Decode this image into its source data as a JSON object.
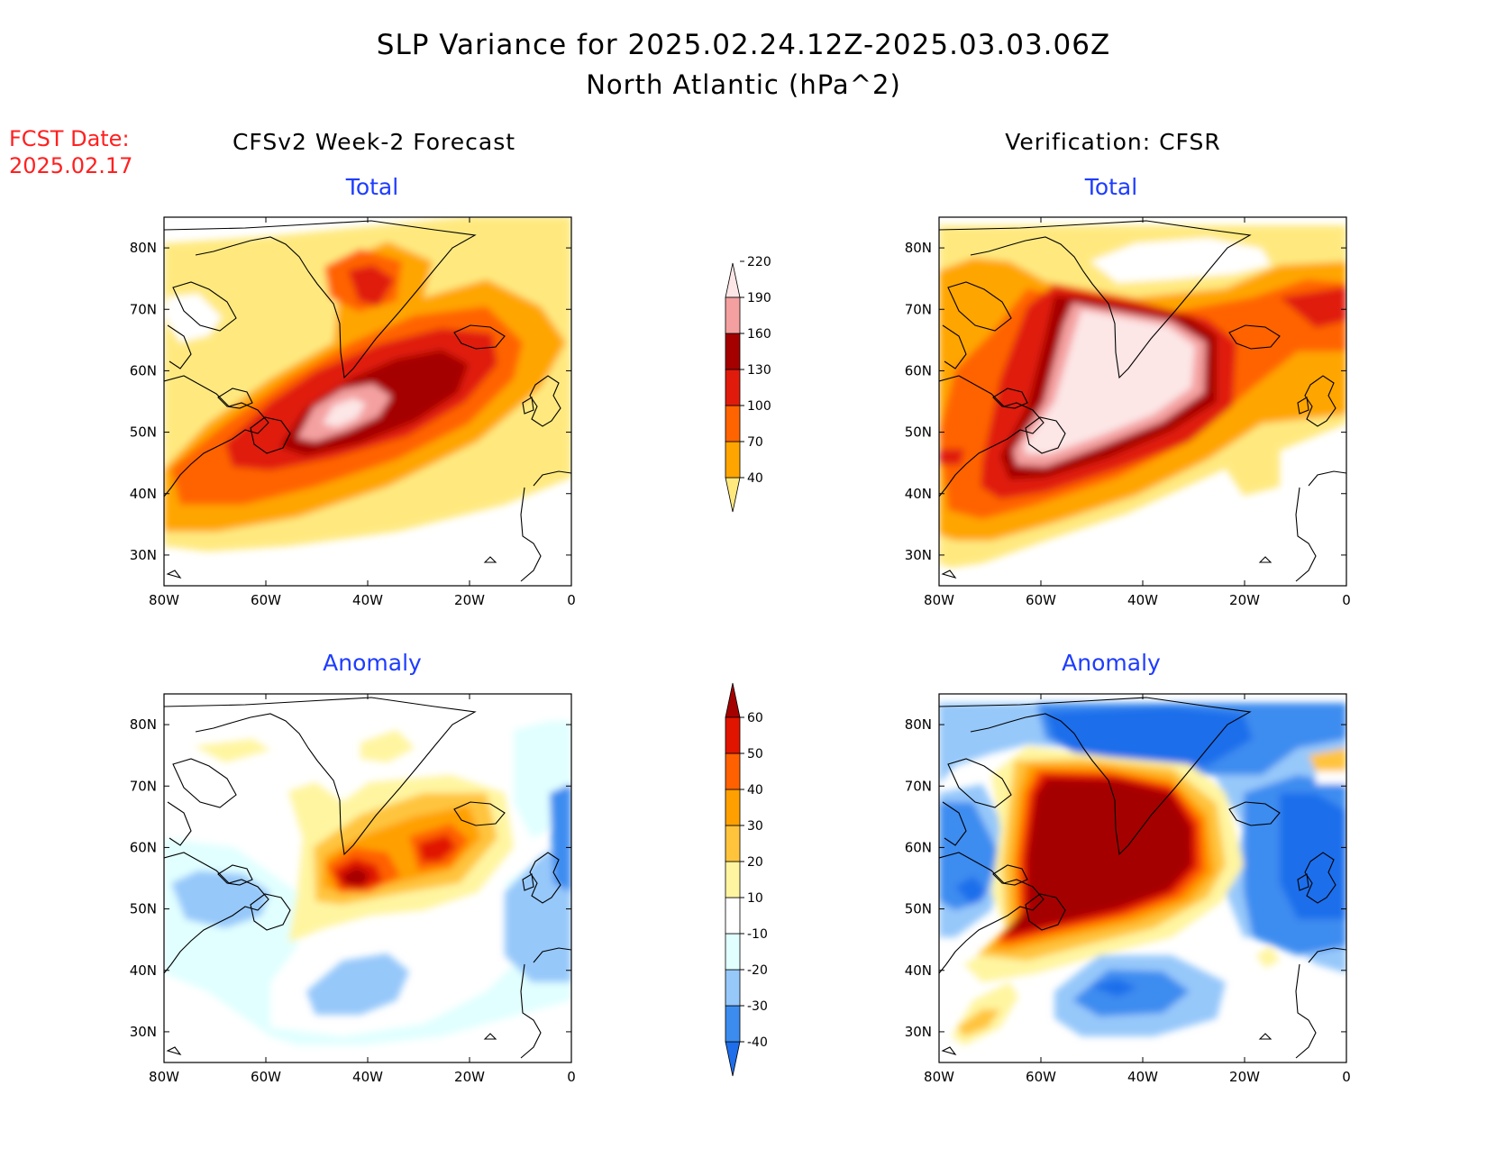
{
  "header": {
    "title_line1": "SLP Variance for 2025.02.24.12Z-2025.03.03.06Z",
    "title_line2": "North Atlantic (hPa^2)",
    "fcst_label": "FCST Date:",
    "fcst_date": "2025.02.17"
  },
  "columns": {
    "forecast": "CFSv2 Week-2 Forecast",
    "verification": "Verification: CFSR"
  },
  "panel_titles": {
    "total": "Total",
    "anomaly": "Anomaly"
  },
  "axes": {
    "lon_labels": [
      "80W",
      "60W",
      "40W",
      "20W",
      "0"
    ],
    "lat_labels": [
      "80N",
      "70N",
      "60N",
      "50N",
      "40N",
      "30N"
    ],
    "lon_range": [
      -80,
      0
    ],
    "lat_range": [
      25,
      85
    ]
  },
  "colorbars": {
    "total": {
      "levels": [
        "40",
        "70",
        "100",
        "130",
        "160",
        "190",
        "220"
      ],
      "colors": [
        "#ffe97f",
        "#ffa500",
        "#ff6400",
        "#e01b0b",
        "#a50000",
        "#f4a0a0",
        "#fde6e6"
      ]
    },
    "anomaly": {
      "levels": [
        "-40",
        "-30",
        "-20",
        "-10",
        "10",
        "20",
        "30",
        "40",
        "50",
        "60"
      ],
      "colors": [
        "#1e6eeb",
        "#3c8cf0",
        "#96c8fa",
        "#e1ffff",
        "#ffffff",
        "#fff5a0",
        "#ffc43c",
        "#ffa000",
        "#ff6000",
        "#e11400",
        "#a50000"
      ]
    }
  }
}
